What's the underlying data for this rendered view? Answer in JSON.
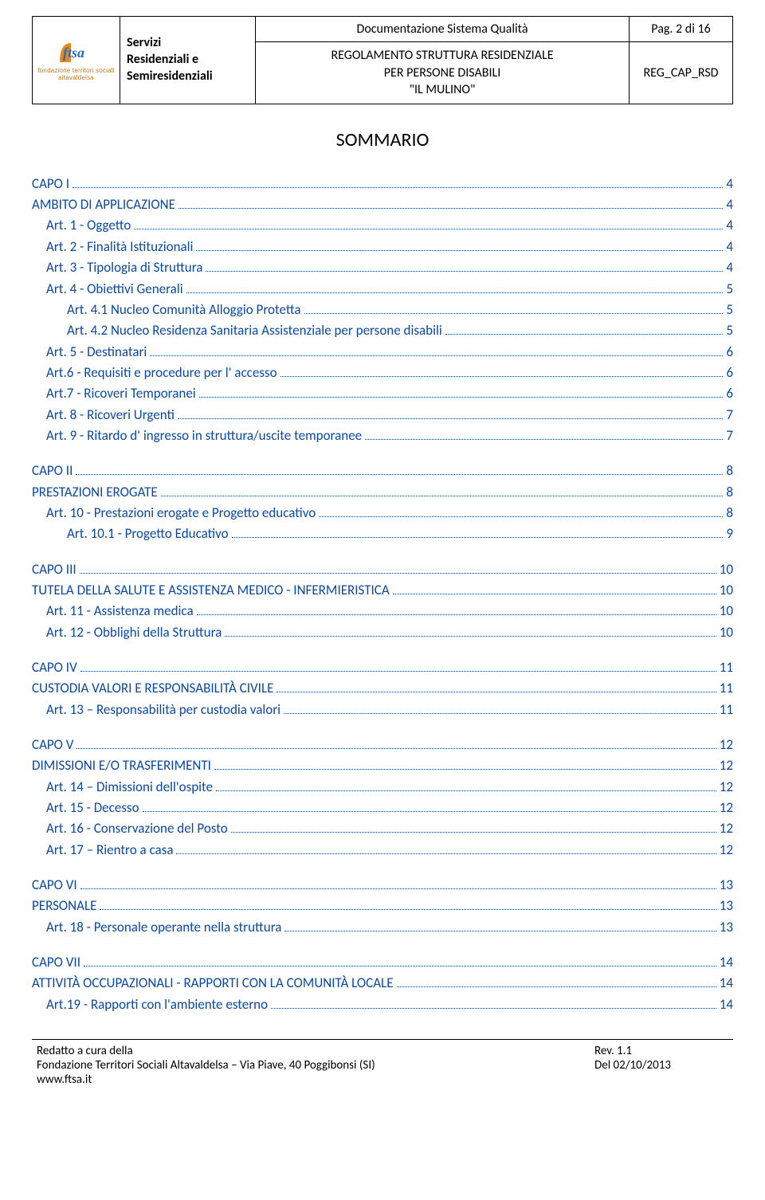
{
  "header": {
    "logo": {
      "text": "ftsa",
      "sub": "fondazione territori sociali altavaldelsa",
      "color_orange": "#e38a1e",
      "color_blue": "#2a6db5"
    },
    "service_lines": [
      "Servizi",
      "Residenziali e",
      "Semiresidenziali"
    ],
    "doc_title": "Documentazione Sistema Qualità",
    "page_label": "Pag. 2 di 16",
    "reg_lines": [
      "REGOLAMENTO STRUTTURA RESIDENZIALE",
      "PER PERSONE DISABILI",
      "\"IL MULINO\""
    ],
    "reg_code": "REG_CAP_RSD"
  },
  "title": "SOMMARIO",
  "toc_color": "#0b4aa2",
  "toc": [
    {
      "group": [
        {
          "lvl": 0,
          "label": "CAPO I",
          "page": "4"
        },
        {
          "lvl": 0,
          "label": "AMBITO DI APPLICAZIONE",
          "page": "4"
        },
        {
          "lvl": 1,
          "label": "Art. 1 - Oggetto",
          "page": "4"
        },
        {
          "lvl": 1,
          "label": "Art. 2 - Finalità Istituzionali",
          "page": "4"
        },
        {
          "lvl": 1,
          "label": "Art. 3 - Tipologia di Struttura",
          "page": "4"
        },
        {
          "lvl": 1,
          "label": "Art. 4 - Obiettivi Generali",
          "page": "5"
        },
        {
          "lvl": 2,
          "label": "Art. 4.1 Nucleo Comunità Alloggio Protetta",
          "page": "5"
        },
        {
          "lvl": 2,
          "label": "Art. 4.2 Nucleo Residenza Sanitaria Assistenziale per persone disabili",
          "page": "5"
        },
        {
          "lvl": 1,
          "label": "Art. 5 - Destinatari",
          "page": "6"
        },
        {
          "lvl": 1,
          "label": "Art.6 - Requisiti e procedure per l' accesso",
          "page": "6"
        },
        {
          "lvl": 1,
          "label": "Art.7 - Ricoveri Temporanei",
          "page": "6"
        },
        {
          "lvl": 1,
          "label": "Art. 8 - Ricoveri Urgenti",
          "page": "7"
        },
        {
          "lvl": 1,
          "label": "Art. 9 - Ritardo d' ingresso in struttura/uscite temporanee",
          "page": "7"
        }
      ]
    },
    {
      "group": [
        {
          "lvl": 0,
          "label": "CAPO II",
          "page": "8"
        },
        {
          "lvl": 0,
          "label": "PRESTAZIONI EROGATE",
          "page": "8"
        },
        {
          "lvl": 1,
          "label": "Art. 10 - Prestazioni erogate e Progetto educativo",
          "page": "8"
        },
        {
          "lvl": 2,
          "label": "Art. 10.1 - Progetto Educativo",
          "page": "9"
        }
      ]
    },
    {
      "group": [
        {
          "lvl": 0,
          "label": "CAPO III",
          "page": "10"
        },
        {
          "lvl": 0,
          "label": "TUTELA DELLA SALUTE E ASSISTENZA MEDICO - INFERMIERISTICA",
          "page": "10"
        },
        {
          "lvl": 1,
          "label": "Art. 11 - Assistenza medica",
          "page": "10"
        },
        {
          "lvl": 1,
          "label": "Art. 12 - Obblighi della Struttura",
          "page": "10"
        }
      ]
    },
    {
      "group": [
        {
          "lvl": 0,
          "label": "CAPO IV",
          "page": "11"
        },
        {
          "lvl": 0,
          "label": "CUSTODIA VALORI E RESPONSABILITÀ CIVILE",
          "page": "11"
        },
        {
          "lvl": 1,
          "label": "Art. 13 – Responsabilità per custodia valori",
          "page": "11"
        }
      ]
    },
    {
      "group": [
        {
          "lvl": 0,
          "label": "CAPO V",
          "page": "12"
        },
        {
          "lvl": 0,
          "label": "DIMISSIONI E/O TRASFERIMENTI",
          "page": "12"
        },
        {
          "lvl": 1,
          "label": "Art. 14 – Dimissioni dell'ospite",
          "page": "12"
        },
        {
          "lvl": 1,
          "label": "Art. 15 - Decesso",
          "page": "12"
        },
        {
          "lvl": 1,
          "label": "Art. 16 - Conservazione del Posto",
          "page": "12"
        },
        {
          "lvl": 1,
          "label": "Art. 17 – Rientro a casa",
          "page": "12"
        }
      ]
    },
    {
      "group": [
        {
          "lvl": 0,
          "label": "CAPO VI",
          "page": "13"
        },
        {
          "lvl": 0,
          "label": "PERSONALE",
          "page": "13"
        },
        {
          "lvl": 1,
          "label": "Art. 18 - Personale operante nella struttura",
          "page": "13"
        }
      ]
    },
    {
      "group": [
        {
          "lvl": 0,
          "label": "CAPO VII",
          "page": "14"
        },
        {
          "lvl": 0,
          "label": "ATTIVITÀ OCCUPAZIONALI - RAPPORTI CON LA COMUNITÀ LOCALE",
          "page": "14"
        },
        {
          "lvl": 1,
          "label": "Art.19 - Rapporti con l'ambiente esterno",
          "page": "14"
        }
      ]
    }
  ],
  "footer": {
    "left_lines": [
      "Redatto a cura della",
      "Fondazione Territori Sociali Altavaldelsa – Via Piave, 40 Poggibonsi (SI)",
      "www.ftsa.it"
    ],
    "right_lines": [
      "Rev. 1.1",
      "Del 02/10/2013"
    ]
  }
}
